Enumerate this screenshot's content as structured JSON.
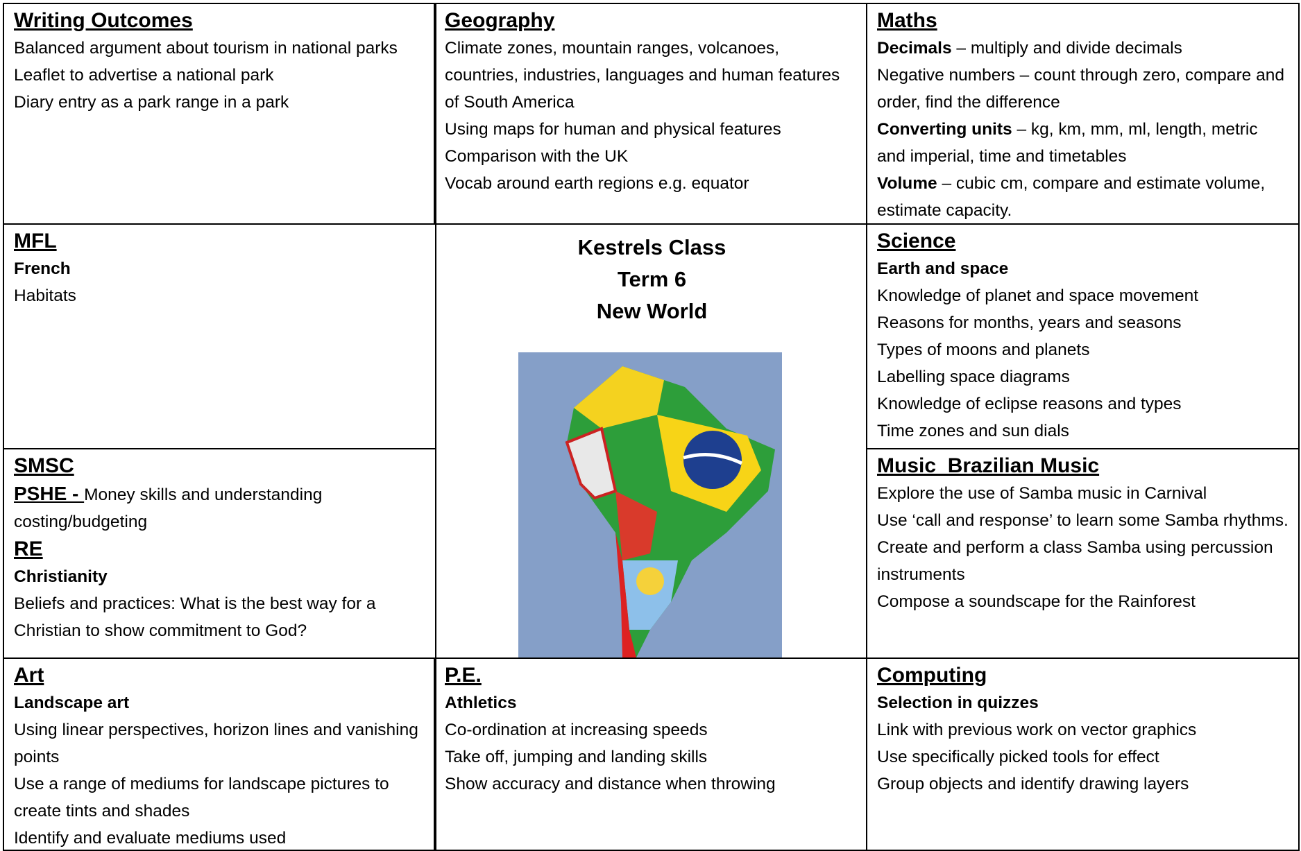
{
  "cells": [
    {
      "title": "Writing Outcomes",
      "blocks": [
        {
          "text": "Balanced argument about tourism in national parks"
        },
        {
          "text": "Leaflet to advertise a national park"
        },
        {
          "text": "Diary entry as a park range in a park"
        }
      ]
    },
    {
      "title": "Geography",
      "blocks": [
        {
          "text": "Climate zones, mountain ranges, volcanoes, countries, industries, languages and human features of South America"
        },
        {
          "text": "Using maps for human and physical features"
        },
        {
          "text": "Comparison with the UK"
        },
        {
          "text": "Vocab around earth regions e.g. equator"
        }
      ]
    },
    {
      "title": "Maths",
      "blocks": [
        {
          "lead": "Decimals",
          "text": " – multiply and divide decimals"
        },
        {
          "text": "Negative numbers – count through zero, compare and order, find the difference"
        },
        {
          "lead": "Converting units",
          "text": " – kg, km, mm, ml, length, metric and imperial, time and timetables"
        },
        {
          "lead": "Volume",
          "text": " – cubic cm, compare and estimate volume, estimate capacity."
        }
      ]
    },
    {
      "title": "MFL",
      "blocks": [
        {
          "bold": "French"
        },
        {
          "text": "Habitats"
        }
      ]
    },
    {
      "title": "SMSC",
      "blocks": [
        {
          "lead_heading": "PSHE - ",
          "text": "Money skills and understanding costing/budgeting"
        },
        {
          "heading": "RE"
        },
        {
          "bold": "Christianity"
        },
        {
          "text": "Beliefs and practices: What is the best way for a Christian to show commitment to God?"
        }
      ]
    },
    {
      "title": "Science",
      "blocks": [
        {
          "bold": "Earth and space"
        },
        {
          "text": "Knowledge of planet and space movement"
        },
        {
          "text": "Reasons for months, years and seasons"
        },
        {
          "text": "Types of moons and planets"
        },
        {
          "text": "Labelling space diagrams"
        },
        {
          "text": "Knowledge of eclipse reasons and types"
        },
        {
          "text": "Time zones and sun dials"
        }
      ]
    },
    {
      "title": "Music  Brazilian Music",
      "blocks": [
        {
          "text": "Explore the use of Samba music in Carnival"
        },
        {
          "text": "Use ‘call and response’ to learn some Samba rhythms."
        },
        {
          "text": "Create and perform a class Samba using percussion instruments"
        },
        {
          "text": "Compose a soundscape for the Rainforest"
        }
      ]
    },
    {
      "title": "Art",
      "blocks": [
        {
          "bold": "Landscape art"
        },
        {
          "text": "Using linear perspectives, horizon lines and vanishing points"
        },
        {
          "text": "Use a range of mediums for landscape pictures to create tints and shades"
        },
        {
          "text": "Identify and evaluate mediums used"
        }
      ]
    },
    {
      "title": "P.E.",
      "blocks": [
        {
          "bold": "Athletics"
        },
        {
          "text": "Co-ordination at increasing speeds"
        },
        {
          "text": "Take off, jumping and landing skills"
        },
        {
          "text": "Show accuracy and distance when throwing"
        }
      ]
    },
    {
      "title": "Computing",
      "blocks": [
        {
          "bold": "Selection in quizzes"
        },
        {
          "text": "Link with previous work on vector graphics"
        },
        {
          "text": "Use specifically picked tools for effect"
        },
        {
          "text": "Group objects and identify drawing layers"
        }
      ]
    }
  ],
  "center": {
    "lines": [
      "Kestrels Class",
      "Term 6",
      "New World"
    ]
  }
}
